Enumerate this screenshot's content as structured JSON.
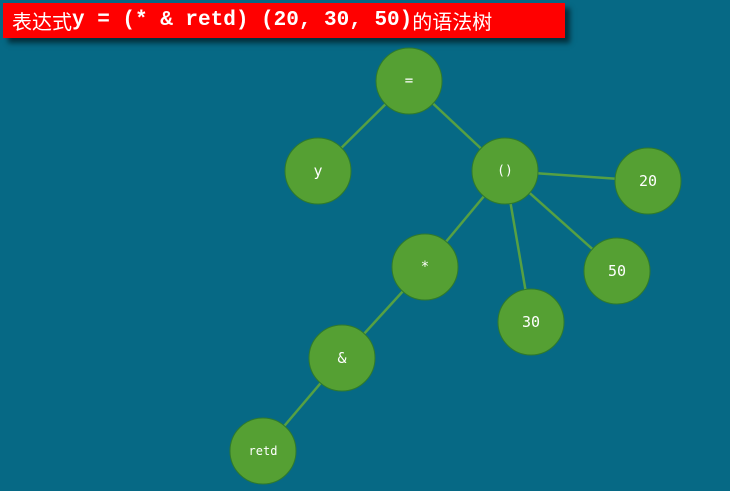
{
  "title": {
    "prefix": "表达式",
    "code": "y = (* & retd) (20, 30, 50)",
    "suffix": "的语法树"
  },
  "tree": {
    "nodes": [
      {
        "id": "assign",
        "label": "="
      },
      {
        "id": "y",
        "label": "y"
      },
      {
        "id": "call",
        "label": "()"
      },
      {
        "id": "n20",
        "label": "20"
      },
      {
        "id": "star",
        "label": "*"
      },
      {
        "id": "n50",
        "label": "50"
      },
      {
        "id": "n30",
        "label": "30"
      },
      {
        "id": "amp",
        "label": "&"
      },
      {
        "id": "retd",
        "label": "retd"
      }
    ],
    "edges": [
      [
        "assign",
        "y"
      ],
      [
        "assign",
        "call"
      ],
      [
        "call",
        "n20"
      ],
      [
        "call",
        "n50"
      ],
      [
        "call",
        "n30"
      ],
      [
        "call",
        "star"
      ],
      [
        "star",
        "amp"
      ],
      [
        "amp",
        "retd"
      ]
    ]
  }
}
